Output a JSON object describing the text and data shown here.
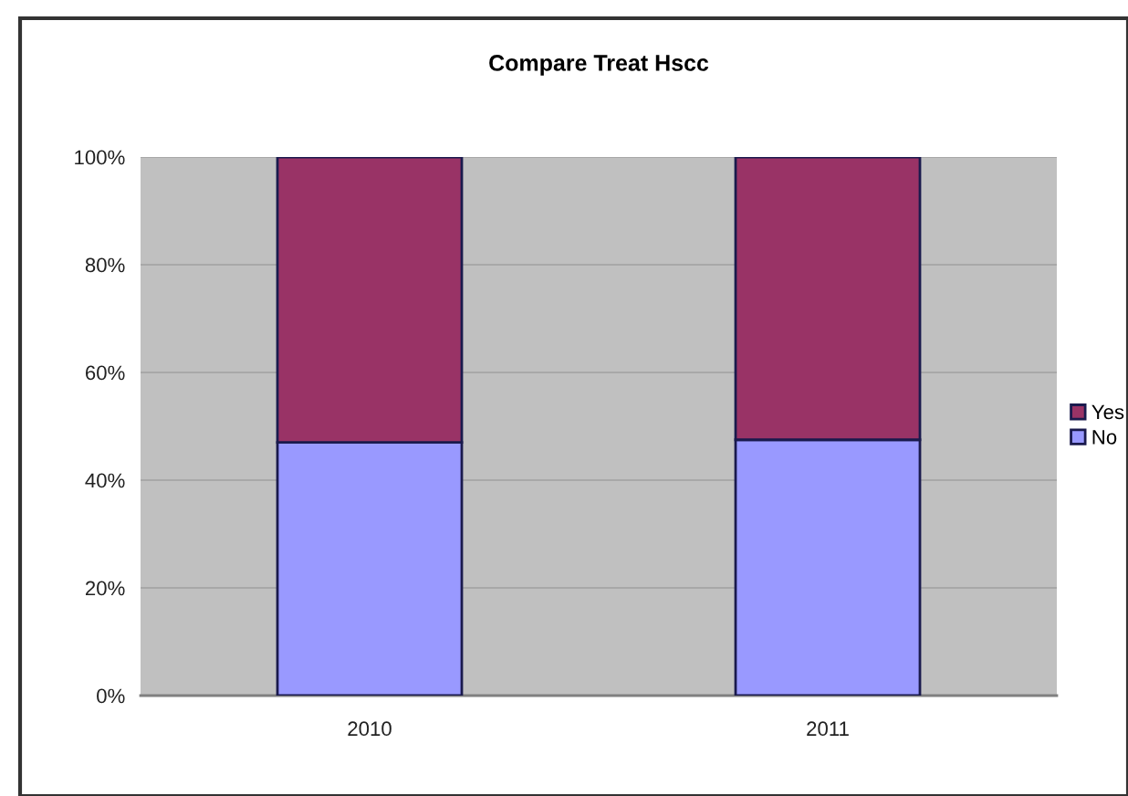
{
  "chart_data": {
    "type": "bar",
    "title": "Compare Treat Hscc",
    "stacked": true,
    "categories": [
      "2010",
      "2011"
    ],
    "series": [
      {
        "name": "No",
        "color": "#9999ff",
        "values": [
          47,
          47.5
        ]
      },
      {
        "name": "Yes",
        "color": "#993366",
        "values": [
          53,
          52.5
        ]
      }
    ],
    "ylim": [
      0,
      100
    ],
    "yticks": [
      {
        "value": 0,
        "label": "0%"
      },
      {
        "value": 20,
        "label": "20%"
      },
      {
        "value": 40,
        "label": "40%"
      },
      {
        "value": 60,
        "label": "60%"
      },
      {
        "value": 80,
        "label": "80%"
      },
      {
        "value": 100,
        "label": "100%"
      }
    ],
    "grid": "y",
    "legend": "right"
  }
}
